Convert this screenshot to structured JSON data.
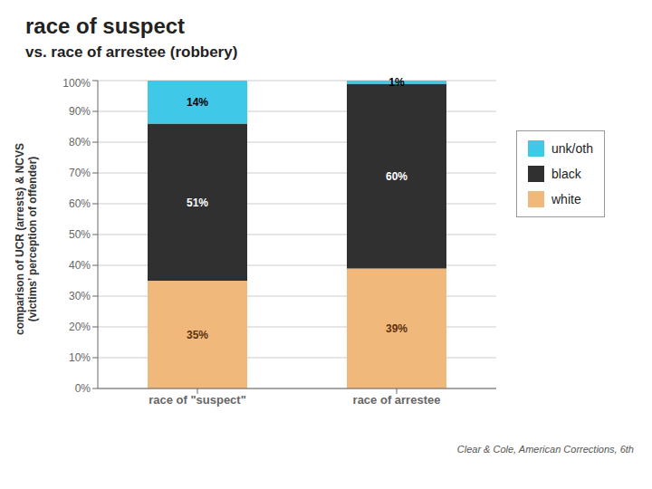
{
  "chart_data": {
    "type": "bar",
    "title": "race of suspect",
    "subtitle": "vs. race of arrestee (robbery)",
    "ylabel": "comparison of UCR (arrests) & NCVS\n(victims’ perception of offender)",
    "annotations": [
      "Clear & Cole, American Corrections, 6th"
    ],
    "categories": [
      "race of \"suspect\"",
      "race of arrestee"
    ],
    "series": [
      {
        "name": "white",
        "color": "#F0B87A",
        "values": [
          35,
          39
        ],
        "value_labels": [
          "35%",
          "39%"
        ]
      },
      {
        "name": "black",
        "color": "#303030",
        "values": [
          51,
          60
        ],
        "value_labels": [
          "51%",
          "60%"
        ]
      },
      {
        "name": "unk/oth",
        "color": "#40C8E8",
        "values": [
          14,
          1
        ],
        "value_labels": [
          "14%",
          "1%"
        ]
      }
    ],
    "stacked": true,
    "data_labels": true,
    "ylim": [
      0,
      100
    ],
    "yticks": [
      {
        "value": 0,
        "label": "0%"
      },
      {
        "value": 10,
        "label": "10%"
      },
      {
        "value": 20,
        "label": "20%"
      },
      {
        "value": 30,
        "label": "30%"
      },
      {
        "value": 40,
        "label": "40%"
      },
      {
        "value": 50,
        "label": "50%"
      },
      {
        "value": 60,
        "label": "60%"
      },
      {
        "value": 70,
        "label": "70%"
      },
      {
        "value": 80,
        "label": "80%"
      },
      {
        "value": 90,
        "label": "90%"
      },
      {
        "value": 100,
        "label": "100%"
      }
    ],
    "grid": true
  }
}
